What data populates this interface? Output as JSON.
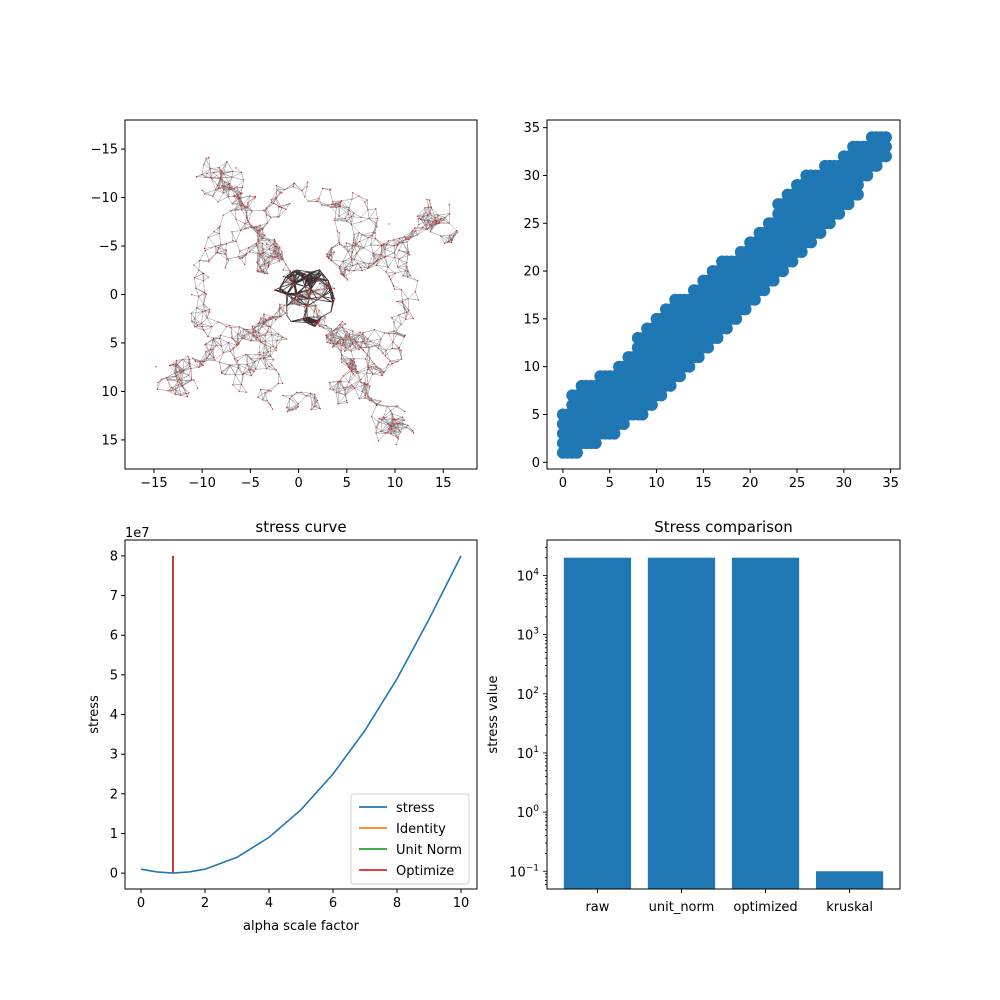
{
  "chart_data": [
    {
      "type": "network",
      "xlim": [
        -18,
        18.5
      ],
      "ylim": [
        18,
        -18
      ],
      "xticks": [
        -15,
        -10,
        -5,
        0,
        5,
        10,
        15
      ],
      "yticks": [
        -15,
        -10,
        -5,
        0,
        5,
        10,
        15
      ],
      "xtick_labels": [
        "−15",
        "−10",
        "−5",
        "0",
        "5",
        "10",
        "15"
      ],
      "ytick_labels": [
        "−15",
        "−10",
        "−5",
        "0",
        "5",
        "10",
        "15"
      ],
      "edge_color": "#8c8c8c",
      "node_color": "#d62728",
      "dense_core_color": "#333333"
    },
    {
      "type": "scatter",
      "xlim": [
        -1.7,
        36
      ],
      "ylim": [
        -0.7,
        35.8
      ],
      "xticks": [
        0,
        5,
        10,
        15,
        20,
        25,
        30,
        35
      ],
      "yticks": [
        0,
        5,
        10,
        15,
        20,
        25,
        30,
        35
      ],
      "xtick_labels": [
        "0",
        "5",
        "10",
        "15",
        "20",
        "25",
        "30",
        "35"
      ],
      "ytick_labels": [
        "0",
        "5",
        "10",
        "15",
        "20",
        "25",
        "30",
        "35"
      ],
      "color": "#1f77b4",
      "points_integer_grid": true,
      "band_lower": [
        [
          0,
          1
        ],
        [
          5,
          3
        ],
        [
          10,
          7
        ],
        [
          15,
          12
        ],
        [
          20,
          17
        ],
        [
          25,
          22
        ],
        [
          30,
          27
        ],
        [
          34,
          32
        ]
      ],
      "band_upper": [
        [
          0,
          5
        ],
        [
          2,
          8
        ],
        [
          5,
          9
        ],
        [
          10,
          15
        ],
        [
          15,
          19
        ],
        [
          20,
          23
        ],
        [
          25,
          29
        ],
        [
          30,
          32
        ],
        [
          34,
          34
        ]
      ]
    },
    {
      "type": "line",
      "title": "stress curve",
      "xlabel": "alpha scale factor",
      "ylabel": "stress",
      "offset_text": "1e7",
      "xlim": [
        -0.5,
        10.5
      ],
      "ylim": [
        -0.4,
        8.4
      ],
      "xticks": [
        0,
        2,
        4,
        6,
        8,
        10
      ],
      "yticks": [
        0,
        1,
        2,
        3,
        4,
        5,
        6,
        7,
        8
      ],
      "xtick_labels": [
        "0",
        "2",
        "4",
        "6",
        "8",
        "10"
      ],
      "ytick_labels": [
        "0",
        "1",
        "2",
        "3",
        "4",
        "5",
        "6",
        "7",
        "8"
      ],
      "series": [
        {
          "name": "stress",
          "color": "#1f77b4",
          "kind": "curve",
          "x": [
            0,
            0.5,
            1,
            1.5,
            2,
            3,
            4,
            5,
            6,
            7,
            8,
            9,
            10
          ],
          "y": [
            0.1,
            0.03,
            0.0,
            0.03,
            0.1,
            0.4,
            0.9,
            1.6,
            2.5,
            3.6,
            4.9,
            6.4,
            8.0
          ]
        },
        {
          "name": "Identity",
          "color": "#ff7f0e",
          "kind": "vline",
          "x": 1,
          "y": [
            0,
            8
          ]
        },
        {
          "name": "Unit Norm",
          "color": "#2ca02c",
          "kind": "vline",
          "x": 1,
          "y": [
            0,
            8
          ]
        },
        {
          "name": "Optimize",
          "color": "#d62728",
          "kind": "vline",
          "x": 1,
          "y": [
            0,
            8
          ]
        }
      ],
      "legend": "lower-right"
    },
    {
      "type": "bar",
      "title": "Stress comparison",
      "ylabel": "stress value",
      "yscale": "log",
      "ylim_exp": [
        -1.3,
        4.6
      ],
      "ytick_exps": [
        -1,
        0,
        1,
        2,
        3,
        4
      ],
      "categories": [
        "raw",
        "unit_norm",
        "optimized",
        "kruskal"
      ],
      "values": [
        20000,
        20000,
        20000,
        0.1
      ],
      "color": "#1f77b4"
    }
  ]
}
